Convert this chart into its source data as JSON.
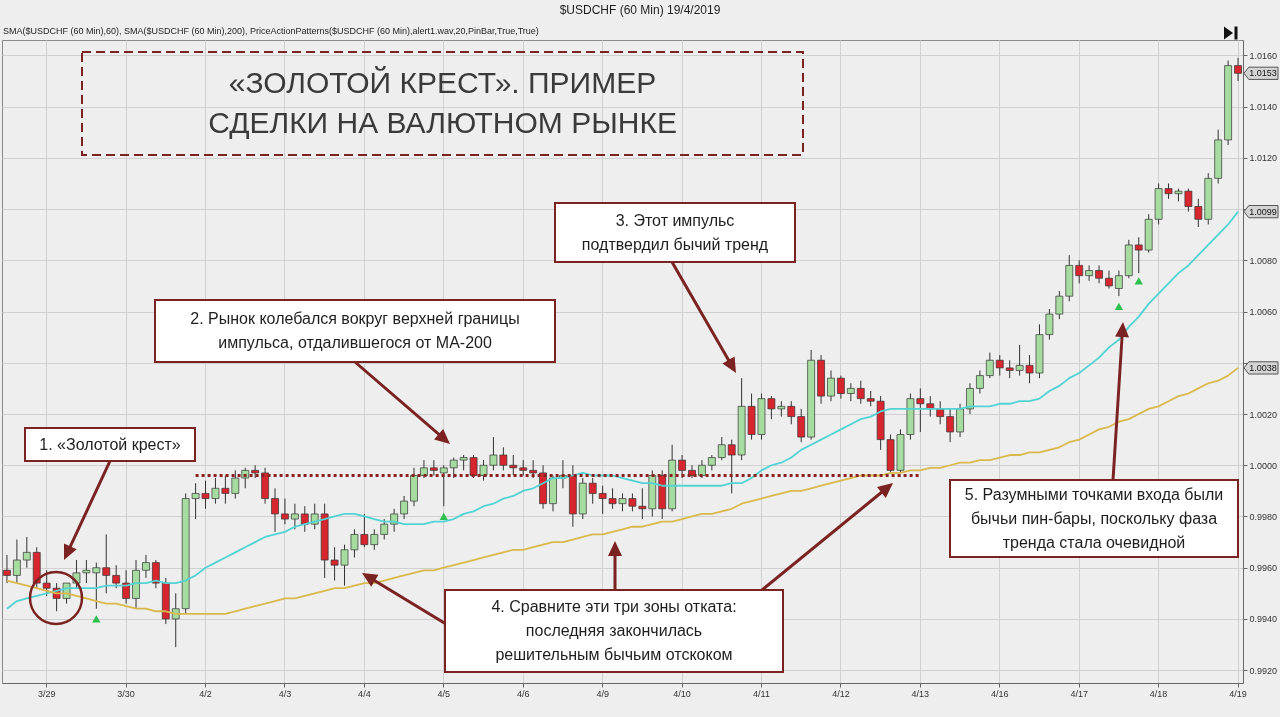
{
  "chart_data": {
    "type": "candlestick",
    "title": "«ЗОЛОТОЙ КРЕСТ». ПРИМЕР СДЕЛКИ НА ВАЛЮТНОМ РЫНКЕ",
    "subtitle": "$USDCHF (60 Min) 19/4/2019",
    "annotations": [
      "SMA($USDCHF (60 Min),60), SMA($USDCHF (60 Min),200), PriceActionPatterns($USDCHF (60 Min),alert1.wav,20,PinBar,True,True)",
      "1. «Золотой крест»",
      "2. Рынок колебался вокруг верхней границы импульса, отдалившегося от MA-200",
      "3. Этот импульс подтвердил бычий тренд",
      "4. Сравните эти три зоны отката: последняя закончилась решительным бычьим отскоком",
      "5. Разумными точками входа были бычьи пин-бары, поскольку фаза тренда стала очевидной",
      {
        "text": "1.0153",
        "y": 1.0153
      },
      {
        "text": "1.0099",
        "y": 1.0099
      },
      {
        "text": "1.0038",
        "y": 1.0038
      }
    ],
    "categories": [
      null,
      null,
      null,
      null,
      "3/29",
      null,
      null,
      null,
      null,
      null,
      null,
      null,
      "3/30",
      null,
      null,
      null,
      null,
      null,
      null,
      null,
      "4/2",
      null,
      null,
      null,
      null,
      null,
      null,
      null,
      "4/3",
      null,
      null,
      null,
      null,
      null,
      null,
      null,
      "4/4",
      null,
      null,
      null,
      null,
      null,
      null,
      null,
      "4/5",
      null,
      null,
      null,
      null,
      null,
      null,
      null,
      "4/6",
      null,
      null,
      null,
      null,
      null,
      null,
      null,
      "4/9",
      null,
      null,
      null,
      null,
      null,
      null,
      null,
      "4/10",
      null,
      null,
      null,
      null,
      null,
      null,
      null,
      "4/11",
      null,
      null,
      null,
      null,
      null,
      null,
      null,
      "4/12",
      null,
      null,
      null,
      null,
      null,
      null,
      null,
      "4/13",
      null,
      null,
      null,
      null,
      null,
      null,
      null,
      "4/16",
      null,
      null,
      null,
      null,
      null,
      null,
      null,
      "4/17",
      null,
      null,
      null,
      null,
      null,
      null,
      null,
      "4/18",
      null,
      null,
      null,
      null,
      null,
      null,
      null,
      "4/19"
    ],
    "ohlc": [
      [
        0.9959,
        0.9965,
        0.9954,
        0.9957
      ],
      [
        0.9957,
        0.9971,
        0.9954,
        0.9963
      ],
      [
        0.9963,
        0.9972,
        0.996,
        0.9966
      ],
      [
        0.9966,
        0.9968,
        0.9952,
        0.9954
      ],
      [
        0.9954,
        0.9959,
        0.9949,
        0.9952
      ],
      [
        0.9952,
        0.9954,
        0.9943,
        0.9948
      ],
      [
        0.9948,
        0.9954,
        0.9946,
        0.9954
      ],
      [
        0.9954,
        0.9963,
        0.9952,
        0.9958
      ],
      [
        0.9958,
        0.9963,
        0.9954,
        0.9959
      ],
      [
        0.9958,
        0.9962,
        0.9944,
        0.996
      ],
      [
        0.996,
        0.9973,
        0.995,
        0.9957
      ],
      [
        0.9957,
        0.9961,
        0.9952,
        0.9954
      ],
      [
        0.9954,
        0.9959,
        0.9946,
        0.9948
      ],
      [
        0.9948,
        0.9963,
        0.9944,
        0.9959
      ],
      [
        0.9959,
        0.9965,
        0.9956,
        0.9962
      ],
      [
        0.9962,
        0.9963,
        0.9952,
        0.9954
      ],
      [
        0.9954,
        0.9956,
        0.9938,
        0.994
      ],
      [
        0.994,
        0.995,
        0.9929,
        0.9944
      ],
      [
        0.9944,
        0.9989,
        0.9942,
        0.9987
      ],
      [
        0.9987,
        0.9993,
        0.9979,
        0.9989
      ],
      [
        0.9989,
        0.9994,
        0.9983,
        0.9987
      ],
      [
        0.9987,
        0.9995,
        0.9985,
        0.9991
      ],
      [
        0.9991,
        0.9996,
        0.9985,
        0.9989
      ],
      [
        0.9989,
        0.9998,
        0.9987,
        0.9995
      ],
      [
        0.9995,
        0.9999,
        0.9991,
        0.9998
      ],
      [
        0.9998,
        1.0,
        0.9995,
        0.9997
      ],
      [
        0.9997,
        0.9999,
        0.9985,
        0.9987
      ],
      [
        0.9987,
        0.9991,
        0.9974,
        0.9981
      ],
      [
        0.9981,
        0.9987,
        0.9977,
        0.9979
      ],
      [
        0.9979,
        0.9985,
        0.9975,
        0.9981
      ],
      [
        0.9981,
        0.9984,
        0.9974,
        0.9977
      ],
      [
        0.9977,
        0.9985,
        0.9975,
        0.9981
      ],
      [
        0.9981,
        0.9985,
        0.9956,
        0.9963
      ],
      [
        0.9963,
        0.9968,
        0.9955,
        0.9961
      ],
      [
        0.9961,
        0.9969,
        0.9953,
        0.9967
      ],
      [
        0.9967,
        0.9975,
        0.9964,
        0.9973
      ],
      [
        0.9973,
        0.9981,
        0.9968,
        0.9969
      ],
      [
        0.9969,
        0.9975,
        0.9967,
        0.9973
      ],
      [
        0.9973,
        0.9979,
        0.9971,
        0.9977
      ],
      [
        0.9977,
        0.9983,
        0.9974,
        0.9981
      ],
      [
        0.9981,
        0.9988,
        0.9979,
        0.9986
      ],
      [
        0.9986,
        0.9999,
        0.9984,
        0.9996
      ],
      [
        0.9996,
        1.0002,
        0.9995,
        0.9999
      ],
      [
        0.9999,
        1.0002,
        0.9996,
        0.9998
      ],
      [
        0.9997,
        1.0,
        0.9984,
        0.9999
      ],
      [
        0.9999,
        1.0003,
        0.9995,
        1.0002
      ],
      [
        1.0002,
        1.0004,
        0.9998,
        1.0003
      ],
      [
        1.0003,
        1.0004,
        0.9995,
        0.9996
      ],
      [
        0.9996,
        1.0002,
        0.9994,
        1.0
      ],
      [
        1.0,
        1.0011,
        0.9998,
        1.0004
      ],
      [
        1.0004,
        1.0007,
        0.9998,
        1.0
      ],
      [
        1.0,
        1.0004,
        0.9996,
        0.9999
      ],
      [
        0.9999,
        1.0002,
        0.9996,
        0.9998
      ],
      [
        0.9998,
        1.0002,
        0.9995,
        0.9997
      ],
      [
        0.9997,
        1.0,
        0.9983,
        0.9985
      ],
      [
        0.9985,
        0.9996,
        0.9982,
        0.9995
      ],
      [
        0.9995,
        1.0002,
        0.9991,
        0.9996
      ],
      [
        0.9996,
        1.0,
        0.9976,
        0.9981
      ],
      [
        0.9981,
        0.9995,
        0.9979,
        0.9993
      ],
      [
        0.9993,
        0.9995,
        0.9985,
        0.9989
      ],
      [
        0.9989,
        0.9992,
        0.9981,
        0.9987
      ],
      [
        0.9987,
        0.9991,
        0.9983,
        0.9985
      ],
      [
        0.9985,
        0.9989,
        0.9982,
        0.9987
      ],
      [
        0.9987,
        0.9989,
        0.9982,
        0.9984
      ],
      [
        0.9984,
        0.9991,
        0.9979,
        0.9983
      ],
      [
        0.9983,
        0.9998,
        0.998,
        0.9996
      ],
      [
        0.9996,
        0.9998,
        0.9979,
        0.9983
      ],
      [
        0.9983,
        1.0008,
        0.9982,
        1.0002
      ],
      [
        1.0002,
        1.0004,
        0.9995,
        0.9998
      ],
      [
        0.9998,
        1.0,
        0.9995,
        0.9996
      ],
      [
        0.9996,
        1.0002,
        0.9995,
        1.0
      ],
      [
        1.0,
        1.0004,
        0.9998,
        1.0003
      ],
      [
        1.0003,
        1.0011,
        1.0002,
        1.0008
      ],
      [
        1.0008,
        1.001,
        0.9989,
        1.0004
      ],
      [
        1.0004,
        1.0034,
        1.0002,
        1.0023
      ],
      [
        1.0023,
        1.0028,
        1.001,
        1.0012
      ],
      [
        1.0012,
        1.0028,
        1.001,
        1.0026
      ],
      [
        1.0026,
        1.0027,
        1.0018,
        1.0022
      ],
      [
        1.0022,
        1.0025,
        1.0019,
        1.0023
      ],
      [
        1.0023,
        1.0025,
        1.0016,
        1.0019
      ],
      [
        1.0019,
        1.0022,
        1.0009,
        1.0011
      ],
      [
        1.0011,
        1.0045,
        1.001,
        1.0041
      ],
      [
        1.0041,
        1.0043,
        1.0024,
        1.0027
      ],
      [
        1.0027,
        1.0037,
        1.0025,
        1.0034
      ],
      [
        1.0034,
        1.0035,
        1.0026,
        1.0028
      ],
      [
        1.0028,
        1.0032,
        1.0025,
        1.003
      ],
      [
        1.003,
        1.0033,
        1.0024,
        1.0026
      ],
      [
        1.0026,
        1.0029,
        1.0023,
        1.0025
      ],
      [
        1.0025,
        1.0027,
        1.0006,
        1.001
      ],
      [
        1.001,
        1.0012,
        0.9997,
        0.9998
      ],
      [
        0.9998,
        1.0014,
        0.9997,
        1.0012
      ],
      [
        1.0012,
        1.0028,
        1.001,
        1.0026
      ],
      [
        1.0026,
        1.003,
        1.0013,
        1.0024
      ],
      [
        1.0024,
        1.0027,
        1.0019,
        1.0022
      ],
      [
        1.0022,
        1.0025,
        1.0016,
        1.0019
      ],
      [
        1.0019,
        1.0022,
        1.0009,
        1.0013
      ],
      [
        1.0013,
        1.0024,
        1.0011,
        1.0022
      ],
      [
        1.0022,
        1.0032,
        1.002,
        1.003
      ],
      [
        1.003,
        1.0037,
        1.0028,
        1.0035
      ],
      [
        1.0035,
        1.0044,
        1.0034,
        1.0041
      ],
      [
        1.0041,
        1.0043,
        1.0035,
        1.0038
      ],
      [
        1.0038,
        1.0041,
        1.0034,
        1.0037
      ],
      [
        1.0037,
        1.0047,
        1.0035,
        1.0039
      ],
      [
        1.0039,
        1.0043,
        1.0032,
        1.0036
      ],
      [
        1.0036,
        1.0055,
        1.0034,
        1.0051
      ],
      [
        1.0051,
        1.0061,
        1.0049,
        1.0059
      ],
      [
        1.0059,
        1.0068,
        1.0057,
        1.0066
      ],
      [
        1.0066,
        1.0082,
        1.0064,
        1.0078
      ],
      [
        1.0078,
        1.008,
        1.0071,
        1.0074
      ],
      [
        1.0074,
        1.0078,
        1.0072,
        1.0076
      ],
      [
        1.0076,
        1.0078,
        1.0071,
        1.0073
      ],
      [
        1.0073,
        1.0076,
        1.0069,
        1.007
      ],
      [
        1.0069,
        1.0076,
        1.0066,
        1.0074
      ],
      [
        1.0074,
        1.0088,
        1.0073,
        1.0086
      ],
      [
        1.0086,
        1.0089,
        1.0075,
        1.0084
      ],
      [
        1.0084,
        1.0098,
        1.0083,
        1.0096
      ],
      [
        1.0096,
        1.011,
        1.0094,
        1.0108
      ],
      [
        1.0108,
        1.011,
        1.0104,
        1.0106
      ],
      [
        1.0106,
        1.0108,
        1.0103,
        1.0107
      ],
      [
        1.0107,
        1.0108,
        1.0099,
        1.0101
      ],
      [
        1.0101,
        1.0104,
        1.0093,
        1.0096
      ],
      [
        1.0096,
        1.0114,
        1.0094,
        1.0112
      ],
      [
        1.0112,
        1.0131,
        1.011,
        1.0127
      ],
      [
        1.0127,
        1.0158,
        1.0125,
        1.0156
      ],
      [
        1.0156,
        1.0159,
        1.015,
        1.0153
      ]
    ],
    "colors": [
      "#d8262e",
      "#a6dca0",
      "#a6dca0",
      "#d8262e",
      "#d8262e",
      "#d8262e",
      "#a6dca0",
      "#a6dca0",
      "#a6dca0",
      "#a6dca0",
      "#d8262e",
      "#d8262e",
      "#d8262e",
      "#a6dca0",
      "#a6dca0",
      "#d8262e",
      "#d8262e",
      "#a6dca0",
      "#a6dca0",
      "#a6dca0",
      "#d8262e",
      "#a6dca0",
      "#d8262e",
      "#a6dca0",
      "#a6dca0",
      "#d8262e",
      "#d8262e",
      "#d8262e",
      "#d8262e",
      "#a6dca0",
      "#d8262e",
      "#a6dca0",
      "#d8262e",
      "#d8262e",
      "#a6dca0",
      "#a6dca0",
      "#d8262e",
      "#a6dca0",
      "#a6dca0",
      "#a6dca0",
      "#a6dca0",
      "#a6dca0",
      "#a6dca0",
      "#d8262e",
      "#a6dca0",
      "#a6dca0",
      "#a6dca0",
      "#d8262e",
      "#a6dca0",
      "#a6dca0",
      "#d8262e",
      "#d8262e",
      "#d8262e",
      "#d8262e",
      "#d8262e",
      "#a6dca0",
      "#a6dca0",
      "#d8262e",
      "#a6dca0",
      "#d8262e",
      "#d8262e",
      "#d8262e",
      "#a6dca0",
      "#d8262e",
      "#d8262e",
      "#a6dca0",
      "#d8262e",
      "#a6dca0",
      "#d8262e",
      "#d8262e",
      "#a6dca0",
      "#a6dca0",
      "#a6dca0",
      "#d8262e",
      "#a6dca0",
      "#d8262e",
      "#a6dca0",
      "#d8262e",
      "#a6dca0",
      "#d8262e",
      "#d8262e",
      "#a6dca0",
      "#d8262e",
      "#a6dca0",
      "#d8262e",
      "#a6dca0",
      "#d8262e",
      "#d8262e",
      "#d8262e",
      "#d8262e",
      "#a6dca0",
      "#a6dca0",
      "#d8262e",
      "#d8262e",
      "#d8262e",
      "#d8262e",
      "#a6dca0",
      "#a6dca0",
      "#a6dca0",
      "#a6dca0",
      "#d8262e",
      "#d8262e",
      "#a6dca0",
      "#d8262e",
      "#a6dca0",
      "#a6dca0",
      "#a6dca0",
      "#a6dca0",
      "#d8262e",
      "#a6dca0",
      "#d8262e",
      "#d8262e",
      "#a6dca0",
      "#a6dca0",
      "#d8262e",
      "#a6dca0",
      "#a6dca0",
      "#d8262e",
      "#a6dca0",
      "#d8262e",
      "#d8262e",
      "#a6dca0",
      "#a6dca0",
      "#a6dca0",
      "#d8262e"
    ],
    "series": [
      {
        "type": "line",
        "color": "#52d3d3",
        "values": [
          0.9944,
          0.9947,
          0.9948,
          0.9949,
          0.995,
          0.9951,
          0.9952,
          0.9952,
          0.9952,
          0.9952,
          0.9953,
          0.9953,
          0.9953,
          0.9954,
          0.9954,
          0.9955,
          0.9954,
          0.9954,
          0.9955,
          0.9957,
          0.996,
          0.9962,
          0.9964,
          0.9966,
          0.9968,
          0.997,
          0.9972,
          0.9973,
          0.9974,
          0.9976,
          0.9977,
          0.9978,
          0.9979,
          0.998,
          0.9981,
          0.9981,
          0.998,
          0.9979,
          0.9978,
          0.9978,
          0.9977,
          0.9977,
          0.9977,
          0.9978,
          0.9978,
          0.9979,
          0.9981,
          0.9982,
          0.9984,
          0.9985,
          0.9987,
          0.9988,
          0.999,
          0.9991,
          0.9993,
          0.9995,
          0.9995,
          0.9996,
          0.9997,
          0.9996,
          0.9996,
          0.9996,
          0.9995,
          0.9994,
          0.9993,
          0.9993,
          0.9992,
          0.9992,
          0.9992,
          0.9992,
          0.9992,
          0.9992,
          0.9992,
          0.9993,
          0.9993,
          0.9995,
          0.9998,
          1.0,
          1.0001,
          1.0003,
          1.0006,
          1.0008,
          1.001,
          1.0012,
          1.0014,
          1.0016,
          1.0018,
          1.0019,
          1.0021,
          1.0022,
          1.0022,
          1.0022,
          1.0022,
          1.0022,
          1.0022,
          1.0022,
          1.0022,
          1.0023,
          1.0023,
          1.0023,
          1.0024,
          1.0024,
          1.0025,
          1.0025,
          1.0026,
          1.0029,
          1.0031,
          1.0034,
          1.0036,
          1.0039,
          1.0042,
          1.0046,
          1.0049,
          1.0054,
          1.0058,
          1.0063,
          1.0067,
          1.0071,
          1.0075,
          1.0078,
          1.0082,
          1.0086,
          1.009,
          1.0094,
          1.0099
        ]
      },
      {
        "type": "line",
        "color": "#d9b84c",
        "values": [
          0.9955,
          0.9954,
          0.9953,
          0.9952,
          0.9951,
          0.995,
          0.995,
          0.9949,
          0.9948,
          0.9947,
          0.9946,
          0.9946,
          0.9945,
          0.9944,
          0.9944,
          0.9943,
          0.9943,
          0.9942,
          0.9942,
          0.9942,
          0.9942,
          0.9942,
          0.9942,
          0.9943,
          0.9944,
          0.9945,
          0.9946,
          0.9947,
          0.9948,
          0.9948,
          0.9949,
          0.995,
          0.9951,
          0.9952,
          0.9952,
          0.9953,
          0.9954,
          0.9954,
          0.9955,
          0.9956,
          0.9957,
          0.9958,
          0.9959,
          0.9959,
          0.996,
          0.9961,
          0.9962,
          0.9963,
          0.9964,
          0.9965,
          0.9966,
          0.9967,
          0.9967,
          0.9968,
          0.9969,
          0.997,
          0.997,
          0.9971,
          0.9972,
          0.9973,
          0.9973,
          0.9974,
          0.9975,
          0.9976,
          0.9976,
          0.9977,
          0.9978,
          0.9978,
          0.9979,
          0.998,
          0.9981,
          0.9981,
          0.9982,
          0.9983,
          0.9985,
          0.9986,
          0.9987,
          0.9988,
          0.9989,
          0.999,
          0.999,
          0.9991,
          0.9992,
          0.9993,
          0.9994,
          0.9995,
          0.9996,
          0.9996,
          0.9996,
          0.9997,
          0.9997,
          0.9998,
          0.9998,
          0.9999,
          0.9999,
          1.0,
          1.0001,
          1.0001,
          1.0002,
          1.0002,
          1.0003,
          1.0004,
          1.0004,
          1.0005,
          1.0005,
          1.0006,
          1.0007,
          1.0009,
          1.001,
          1.0012,
          1.0014,
          1.0015,
          1.0017,
          1.0018,
          1.002,
          1.0022,
          1.0023,
          1.0025,
          1.0027,
          1.0028,
          1.003,
          1.0032,
          1.0033,
          1.0035,
          1.0038
        ]
      },
      {
        "type": "line",
        "line_style": "dotted",
        "color": "#8b2222",
        "values": [
          null,
          null,
          null,
          null,
          null,
          null,
          null,
          null,
          null,
          null,
          null,
          null,
          null,
          null,
          null,
          null,
          null,
          null,
          null,
          0.9996,
          0.9996,
          0.9996,
          0.9996,
          0.9996,
          0.9996,
          0.9996,
          0.9996,
          0.9996,
          0.9996,
          0.9996,
          0.9996,
          0.9996,
          0.9996,
          0.9996,
          0.9996,
          0.9996,
          0.9996,
          0.9996,
          0.9996,
          0.9996,
          0.9996,
          0.9996,
          0.9996,
          0.9996,
          0.9996,
          0.9996,
          0.9996,
          0.9996,
          0.9996,
          0.9996,
          0.9996,
          0.9996,
          0.9996,
          0.9996,
          0.9996,
          0.9996,
          0.9996,
          0.9996,
          0.9996,
          0.9996,
          0.9996,
          0.9996,
          0.9996,
          0.9996,
          0.9996,
          0.9996,
          0.9996,
          0.9996,
          0.9996,
          0.9996,
          0.9996,
          0.9996,
          0.9996,
          0.9996,
          0.9996,
          0.9996,
          0.9996,
          0.9996,
          0.9996,
          0.9996,
          0.9996,
          0.9996,
          0.9996,
          0.9996,
          0.9996,
          0.9996,
          0.9996,
          0.9996,
          0.9996,
          0.9996,
          0.9996,
          0.9996,
          0.9996,
          null,
          null,
          null,
          null,
          null,
          null,
          null,
          null,
          null,
          null,
          null,
          null,
          null,
          null,
          null,
          null,
          null,
          null,
          null,
          null,
          null,
          null,
          null,
          null,
          null,
          null,
          null,
          null,
          null,
          null,
          null,
          null
        ]
      },
      {
        "type": "scatter",
        "marker": "triangle",
        "color": "#2fbf4f",
        "values": [
          null,
          null,
          null,
          null,
          null,
          null,
          null,
          null,
          null,
          0.994,
          null,
          null,
          null,
          null,
          null,
          null,
          null,
          null,
          null,
          null,
          null,
          null,
          null,
          null,
          null,
          null,
          null,
          null,
          null,
          null,
          null,
          null,
          null,
          null,
          null,
          null,
          null,
          null,
          null,
          null,
          null,
          null,
          null,
          null,
          0.998,
          null,
          null,
          null,
          null,
          null,
          null,
          null,
          null,
          null,
          null,
          null,
          null,
          null,
          null,
          null,
          null,
          null,
          null,
          null,
          null,
          null,
          null,
          null,
          null,
          null,
          null,
          null,
          null,
          null,
          null,
          null,
          null,
          null,
          null,
          null,
          null,
          null,
          null,
          null,
          null,
          null,
          null,
          null,
          null,
          null,
          null,
          null,
          null,
          null,
          null,
          null,
          null,
          null,
          null,
          null,
          null,
          null,
          null,
          null,
          null,
          null,
          null,
          null,
          null,
          null,
          null,
          null,
          1.0062,
          null,
          1.0072,
          null,
          null,
          null,
          null,
          null,
          null,
          null,
          null,
          null,
          null
        ]
      }
    ],
    "ylim": [
      0.9915,
      1.0166
    ],
    "yticks": [
      {
        "value": 0.992,
        "label": "0.9920"
      },
      {
        "value": 0.994,
        "label": "0.9940"
      },
      {
        "value": 0.996,
        "label": "0.9960"
      },
      {
        "value": 0.998,
        "label": "0.9980"
      },
      {
        "value": 1.0,
        "label": "1.0000"
      },
      {
        "value": 1.002,
        "label": "1.0020"
      },
      {
        "value": 1.004,
        "label": null
      },
      {
        "value": 1.006,
        "label": "1.0060"
      },
      {
        "value": 1.008,
        "label": "1.0080"
      },
      {
        "value": 1.01,
        "label": null
      },
      {
        "value": 1.012,
        "label": "1.0120"
      },
      {
        "value": 1.014,
        "label": "1.0140"
      },
      {
        "value": 1.016,
        "label": "1.0160"
      }
    ],
    "grid": true
  }
}
